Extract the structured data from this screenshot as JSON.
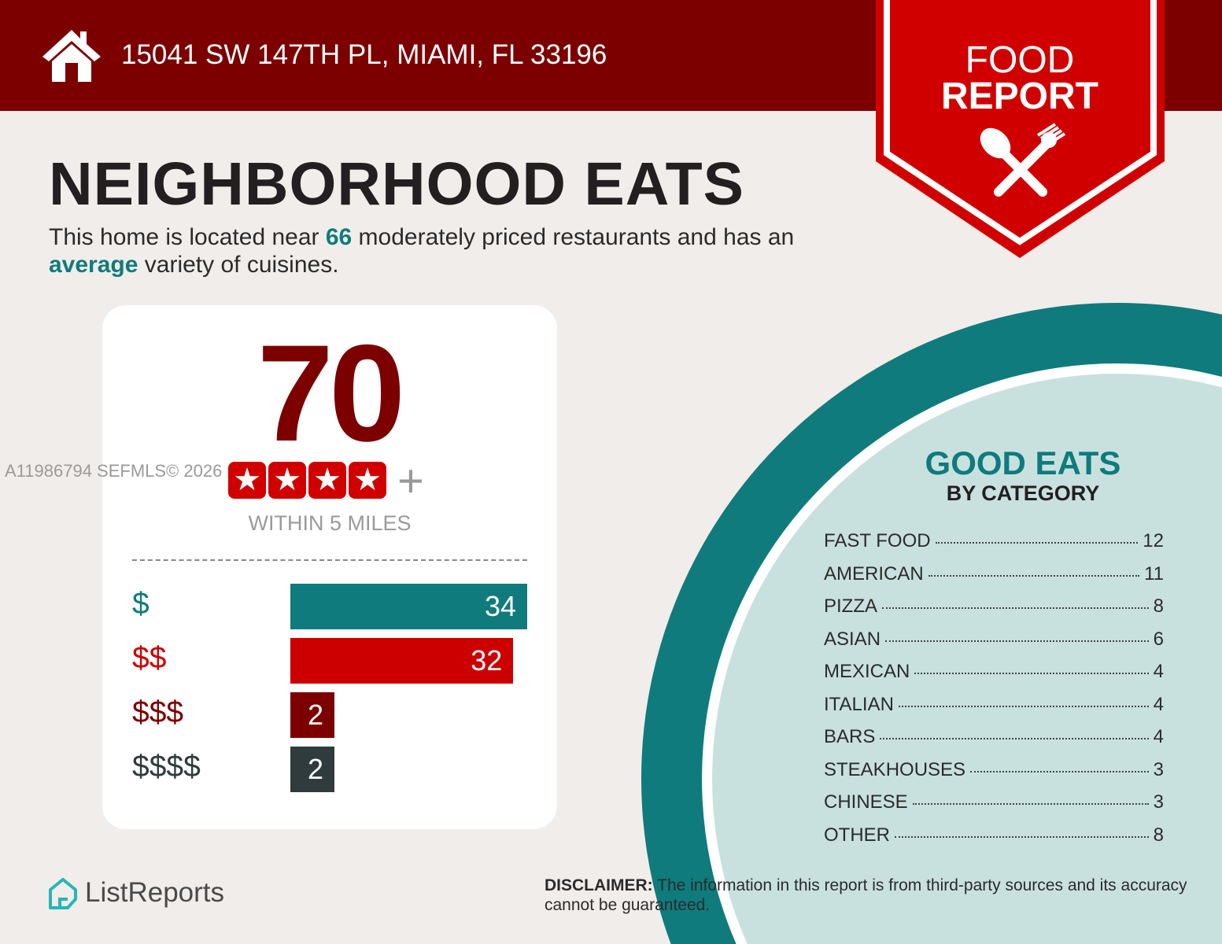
{
  "header": {
    "address": "15041 SW 147TH PL, MIAMI, FL 33196",
    "badge_line1": "FOOD",
    "badge_line2": "REPORT"
  },
  "title": "NEIGHBORHOOD EATS",
  "intro": {
    "part1": "This home is located near ",
    "count": "66",
    "part2": " moderately priced restaurants and has an ",
    "variety": "average",
    "part3": " variety of cuisines."
  },
  "score": {
    "value": "70",
    "stars": 4,
    "plus": "+",
    "within": "WITHIN 5 MILES"
  },
  "watermark": "A11986794  SEFMLS© 2026",
  "price_bars": [
    {
      "label": "$",
      "value": 34,
      "text": "34",
      "color": "#0f7b7d"
    },
    {
      "label": "$$",
      "value": 32,
      "text": "32",
      "color": "#cc0000"
    },
    {
      "label": "$$$",
      "value": 2,
      "text": "2",
      "color": "#7c0000"
    },
    {
      "label": "$$$$",
      "value": 2,
      "text": "2",
      "color": "#2f3b3d"
    }
  ],
  "good_eats": {
    "title": "GOOD EATS",
    "subtitle": "BY CATEGORY",
    "categories": [
      {
        "name": "FAST FOOD",
        "count": "12"
      },
      {
        "name": "AMERICAN",
        "count": "11"
      },
      {
        "name": "PIZZA",
        "count": "8"
      },
      {
        "name": "ASIAN",
        "count": "6"
      },
      {
        "name": "MEXICAN",
        "count": "4"
      },
      {
        "name": "ITALIAN",
        "count": "4"
      },
      {
        "name": "BARS",
        "count": "4"
      },
      {
        "name": "STEAKHOUSES",
        "count": "3"
      },
      {
        "name": "CHINESE",
        "count": "3"
      },
      {
        "name": "OTHER",
        "count": "8"
      }
    ]
  },
  "footer": {
    "logo": "ListReports",
    "disclaimer_label": "DISCLAIMER:",
    "disclaimer": " The information in this report is from third-party sources and its accuracy cannot be guaranteed."
  },
  "colors": {
    "header": "#7c0000",
    "badge": "#d10000",
    "teal": "#0f7b7d",
    "light_teal": "#c8e1df"
  }
}
